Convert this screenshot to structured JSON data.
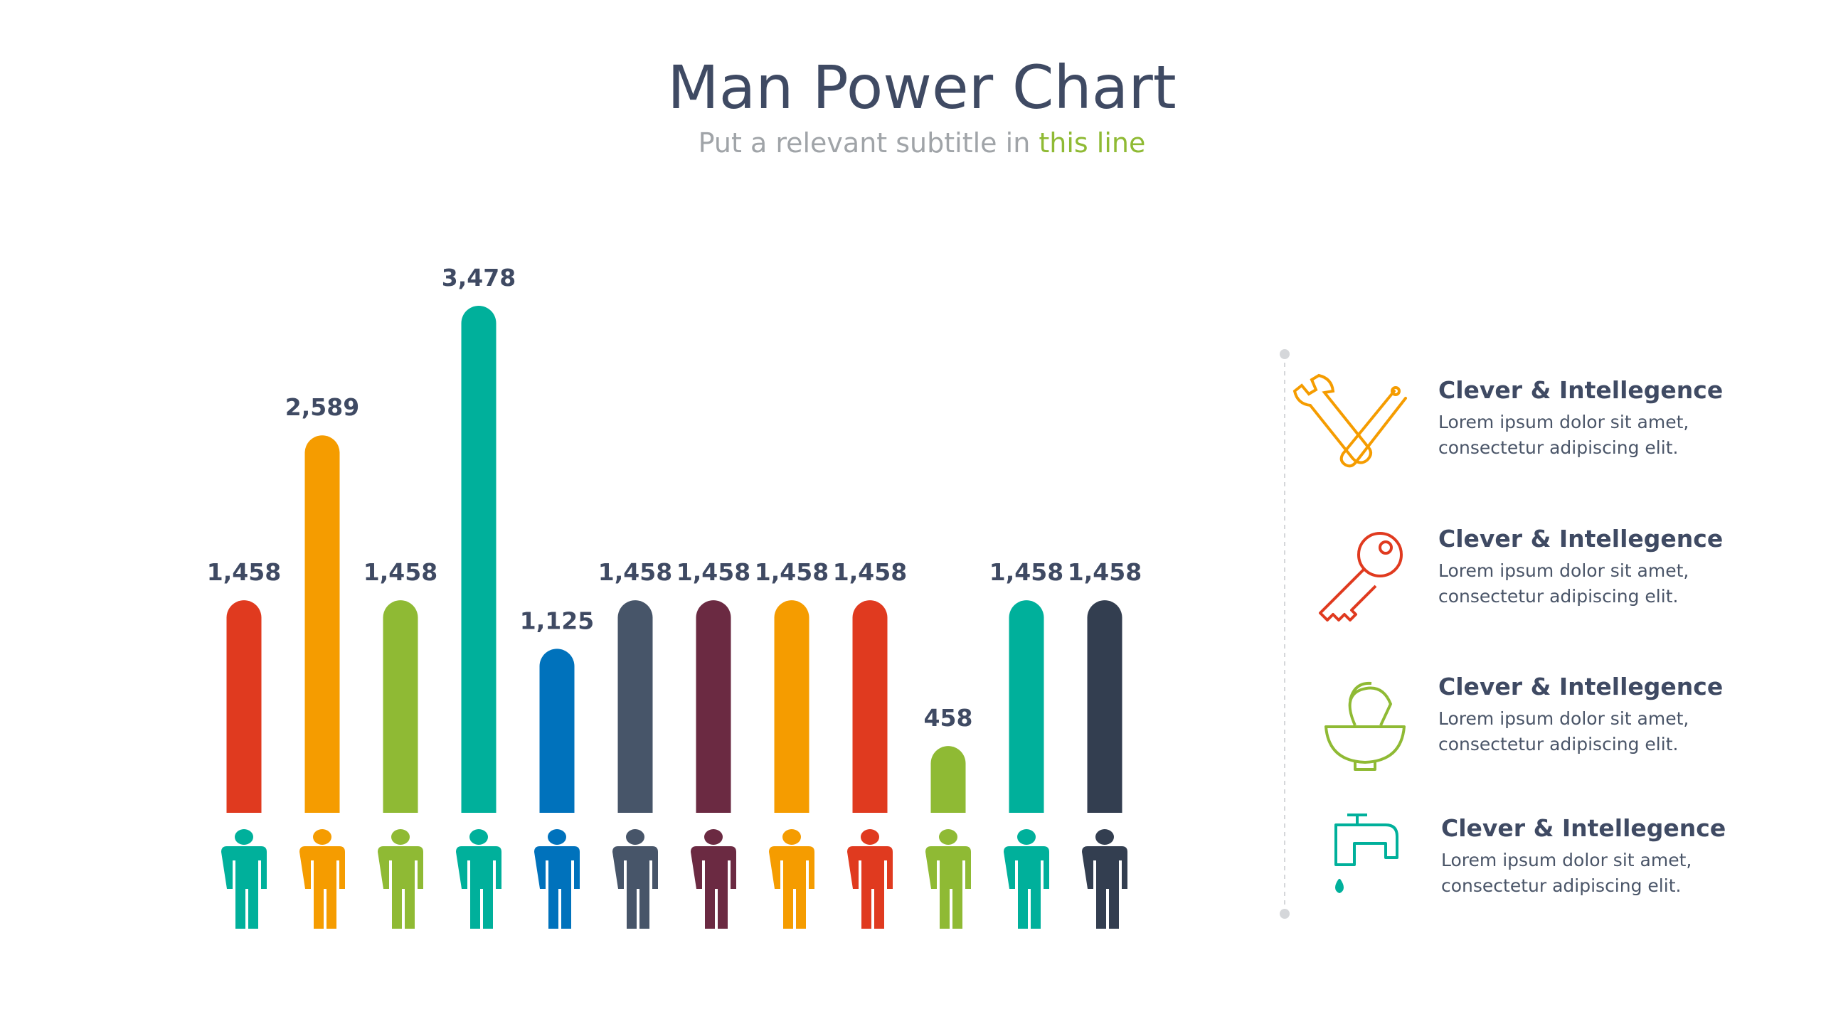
{
  "chart_data": {
    "type": "bar",
    "title": "Man Power Chart",
    "subtitle": [
      "Put a relevant subtitle in ",
      "this line"
    ],
    "values": [
      1458,
      2589,
      1458,
      3478,
      1125,
      1458,
      1458,
      1458,
      1458,
      458,
      1458,
      1458
    ],
    "value_labels": [
      "1,458",
      "2,589",
      "1,458",
      "3,478",
      "1,125",
      "1,458",
      "1,458",
      "1,458",
      "1,458",
      "458",
      "1,458",
      "1,458"
    ],
    "colors": [
      "#e03a1f",
      "#f59c00",
      "#8fba34",
      "#00b09b",
      "#0072bc",
      "#475569",
      "#6b2a42",
      "#f59c00",
      "#e03a1f",
      "#8fba34",
      "#00b09b",
      "#333e50"
    ],
    "icon_colors": [
      "#00b09b",
      "#f59c00",
      "#8fba34",
      "#00b09b",
      "#0072bc",
      "#475569",
      "#6b2a42",
      "#f59c00",
      "#e03a1f",
      "#8fba34",
      "#00b09b",
      "#333e50"
    ]
  },
  "features": [
    {
      "title": "Clever & Intellegence",
      "lines": [
        "Lorem ipsum dolor sit amet,",
        "consectetur adipiscing elit."
      ]
    },
    {
      "title": "Clever & Intellegence",
      "lines": [
        "Lorem ipsum dolor sit amet,",
        "consectetur adipiscing elit."
      ]
    },
    {
      "title": "Clever & Intellegence",
      "lines": [
        "Lorem ipsum dolor sit amet,",
        "consectetur adipiscing elit."
      ]
    },
    {
      "title": "Clever & Intellegence",
      "lines": [
        "Lorem ipsum dolor sit amet,",
        "consectetur adipiscing elit."
      ]
    }
  ]
}
